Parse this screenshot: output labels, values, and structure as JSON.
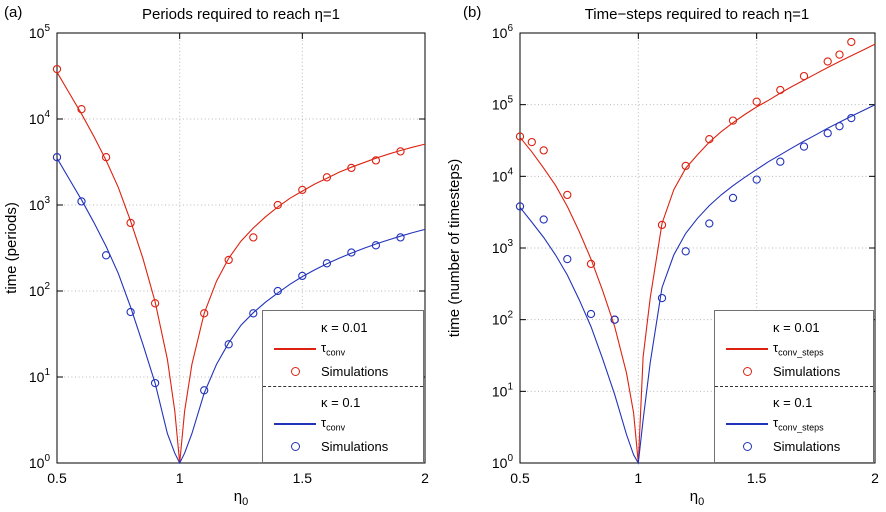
{
  "colors": {
    "red": "#dd2211",
    "blue": "#2233bb",
    "grid": "#b8b8b8",
    "axis": "#000000"
  },
  "chart_data": [
    {
      "type": "line",
      "panel_label": "(a)",
      "title": "Periods required to reach η=1",
      "ylabel": "time (periods)",
      "xlabel_base": "η",
      "xlabel_sub": "0",
      "xlim": [
        0.5,
        2
      ],
      "ylim": [
        0,
        5
      ],
      "grid": "dotted",
      "legend_position": "lower right",
      "xticks": [
        0.5,
        1,
        1.5,
        2
      ],
      "xtick_labels": [
        "0.5",
        "1",
        "1.5",
        "2"
      ],
      "series": [
        {
          "name": "tau-conv-k001",
          "style": "line",
          "color_key": "red",
          "x": [
            0.5,
            0.55,
            0.6,
            0.65,
            0.7,
            0.75,
            0.8,
            0.85,
            0.9,
            0.95,
            0.98,
            1.0,
            1.02,
            1.05,
            1.1,
            1.15,
            1.2,
            1.25,
            1.3,
            1.35,
            1.4,
            1.45,
            1.5,
            1.55,
            1.6,
            1.65,
            1.7,
            1.75,
            1.8,
            1.85,
            1.9,
            1.95,
            2.0
          ],
          "y": [
            35000,
            20000,
            11500,
            6300,
            3300,
            1600,
            650,
            240,
            75,
            16,
            4,
            1,
            4,
            14,
            55,
            130,
            240,
            380,
            540,
            730,
            950,
            1200,
            1450,
            1750,
            2050,
            2400,
            2750,
            3100,
            3500,
            3900,
            4300,
            4700,
            5100
          ]
        },
        {
          "name": "simulations-k001",
          "style": "marker",
          "color_key": "red",
          "x": [
            0.5,
            0.6,
            0.7,
            0.8,
            0.9,
            1.1,
            1.2,
            1.3,
            1.4,
            1.5,
            1.6,
            1.7,
            1.8,
            1.9
          ],
          "y": [
            38000,
            13000,
            3600,
            620,
            72,
            55,
            230,
            420,
            1000,
            1500,
            2100,
            2700,
            3300,
            4200
          ]
        },
        {
          "name": "tau-conv-k01",
          "style": "line",
          "color_key": "blue",
          "x": [
            0.5,
            0.55,
            0.6,
            0.65,
            0.7,
            0.75,
            0.8,
            0.85,
            0.9,
            0.95,
            0.98,
            1.0,
            1.02,
            1.05,
            1.1,
            1.15,
            1.2,
            1.25,
            1.3,
            1.35,
            1.4,
            1.45,
            1.5,
            1.55,
            1.6,
            1.65,
            1.7,
            1.75,
            1.8,
            1.85,
            1.9,
            1.95,
            2.0
          ],
          "y": [
            3500,
            2000,
            1150,
            630,
            330,
            160,
            65,
            24,
            8.5,
            2.2,
            1.3,
            1,
            1.3,
            2.2,
            6.5,
            14,
            25,
            40,
            56,
            74,
            95,
            120,
            147,
            176,
            207,
            240,
            276,
            313,
            352,
            392,
            434,
            477,
            520
          ]
        },
        {
          "name": "simulations-k01",
          "style": "marker",
          "color_key": "blue",
          "x": [
            0.5,
            0.6,
            0.7,
            0.8,
            0.9,
            1.1,
            1.2,
            1.3,
            1.4,
            1.5,
            1.6,
            1.7,
            1.8,
            1.9
          ],
          "y": [
            3600,
            1100,
            260,
            57,
            8.5,
            7,
            24,
            55,
            100,
            150,
            210,
            280,
            340,
            420
          ]
        }
      ],
      "legend_rows": [
        {
          "type": "header",
          "label": "κ = 0.01"
        },
        {
          "type": "line",
          "color_key": "red",
          "label_base": "τ",
          "label_sub": "conv"
        },
        {
          "type": "marker",
          "color_key": "red",
          "label": "Simulations"
        },
        {
          "type": "separator"
        },
        {
          "type": "header",
          "label": "κ = 0.1"
        },
        {
          "type": "line",
          "color_key": "blue",
          "label_base": "τ",
          "label_sub": "conv"
        },
        {
          "type": "marker",
          "color_key": "blue",
          "label": "Simulations"
        }
      ]
    },
    {
      "type": "line",
      "panel_label": "(b)",
      "title": "Time−steps required to reach η=1",
      "ylabel": "time (number of timesteps)",
      "xlabel_base": "η",
      "xlabel_sub": "0",
      "xlim": [
        0.5,
        2
      ],
      "ylim": [
        0,
        6
      ],
      "grid": "dotted",
      "legend_position": "lower right",
      "xticks": [
        0.5,
        1,
        1.5,
        2
      ],
      "xtick_labels": [
        "0.5",
        "1",
        "1.5",
        "2"
      ],
      "series": [
        {
          "name": "tau-conv-steps-k001",
          "style": "line",
          "color_key": "red",
          "x": [
            0.5,
            0.55,
            0.6,
            0.65,
            0.7,
            0.75,
            0.8,
            0.85,
            0.9,
            0.95,
            0.98,
            1.0,
            1.02,
            1.05,
            1.1,
            1.15,
            1.2,
            1.25,
            1.3,
            1.35,
            1.4,
            1.45,
            1.5,
            1.55,
            1.6,
            1.65,
            1.7,
            1.75,
            1.8,
            1.85,
            1.9,
            1.95,
            2.0
          ],
          "y": [
            35000,
            22000,
            13000,
            7500,
            3800,
            1700,
            700,
            250,
            80,
            18,
            5,
            1,
            30,
            200,
            2200,
            6500,
            13000,
            20000,
            30000,
            42000,
            56000,
            73000,
            93000,
            115000,
            145000,
            180000,
            220000,
            270000,
            330000,
            400000,
            480000,
            580000,
            700000
          ]
        },
        {
          "name": "simulations-steps-k001",
          "style": "marker",
          "color_key": "red",
          "x": [
            0.5,
            0.55,
            0.6,
            0.7,
            0.8,
            0.9,
            1.1,
            1.2,
            1.3,
            1.4,
            1.5,
            1.6,
            1.7,
            1.8,
            1.85,
            1.9
          ],
          "y": [
            36000,
            30000,
            23000,
            5500,
            600,
            100,
            2100,
            14000,
            33000,
            60000,
            110000,
            160000,
            250000,
            400000,
            500000,
            750000
          ]
        },
        {
          "name": "tau-conv-steps-k01",
          "style": "line",
          "color_key": "blue",
          "x": [
            0.5,
            0.55,
            0.6,
            0.65,
            0.7,
            0.75,
            0.8,
            0.85,
            0.9,
            0.95,
            0.98,
            1.0,
            1.02,
            1.05,
            1.1,
            1.15,
            1.2,
            1.25,
            1.3,
            1.35,
            1.4,
            1.45,
            1.5,
            1.55,
            1.6,
            1.65,
            1.7,
            1.75,
            1.8,
            1.85,
            1.9,
            1.95,
            2.0
          ],
          "y": [
            3700,
            2300,
            1400,
            800,
            420,
            190,
            80,
            28,
            9,
            2.5,
            1.3,
            1,
            4,
            25,
            280,
            800,
            1600,
            2600,
            3900,
            5500,
            7400,
            9700,
            12500,
            16000,
            20000,
            25000,
            31000,
            38000,
            47000,
            57000,
            69000,
            83000,
            100000
          ]
        },
        {
          "name": "simulations-steps-k01",
          "style": "marker",
          "color_key": "blue",
          "x": [
            0.5,
            0.6,
            0.7,
            0.8,
            0.9,
            1.1,
            1.2,
            1.3,
            1.4,
            1.5,
            1.6,
            1.7,
            1.8,
            1.85,
            1.9
          ],
          "y": [
            3800,
            2500,
            700,
            120,
            100,
            200,
            900,
            2200,
            5000,
            9000,
            16000,
            26000,
            40000,
            50000,
            65000
          ]
        }
      ],
      "legend_rows": [
        {
          "type": "header",
          "label": "κ = 0.01"
        },
        {
          "type": "line",
          "color_key": "red",
          "label_base": "τ",
          "label_sub": "conv_steps"
        },
        {
          "type": "marker",
          "color_key": "red",
          "label": "Simulations"
        },
        {
          "type": "separator"
        },
        {
          "type": "header",
          "label": "κ = 0.1"
        },
        {
          "type": "line",
          "color_key": "blue",
          "label_base": "τ",
          "label_sub": "conv_steps"
        },
        {
          "type": "marker",
          "color_key": "blue",
          "label": "Simulations"
        }
      ]
    }
  ]
}
